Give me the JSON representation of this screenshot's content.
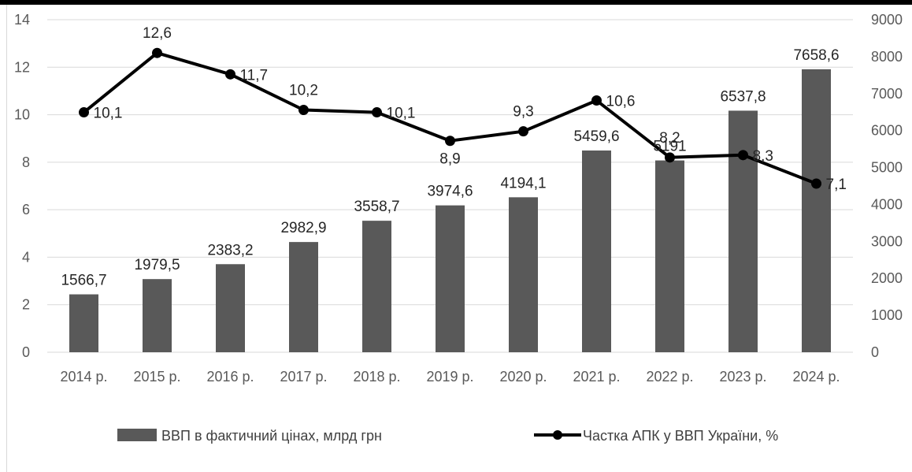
{
  "chart_data": {
    "type": "bar+line",
    "title": "",
    "categories": [
      "2014 р.",
      "2015 р.",
      "2016 р.",
      "2017 р.",
      "2018 р.",
      "2019 р.",
      "2020 р.",
      "2021 р.",
      "2022 р.",
      "2023 р.",
      "2024 р."
    ],
    "series": [
      {
        "name": "ВВП в фактичний цінах, млрд грн",
        "type": "bar",
        "axis": "right",
        "values": [
          1566.7,
          1979.5,
          2383.2,
          2982.9,
          3558.7,
          3974.6,
          4194.1,
          5459.6,
          5191,
          6537.8,
          7658.6
        ],
        "labels": [
          "1566,7",
          "1979,5",
          "2383,2",
          "2982,9",
          "3558,7",
          "3974,6",
          "4194,1",
          "5459,6",
          "5191",
          "6537,8",
          "7658,6"
        ],
        "color": "#595959"
      },
      {
        "name": "Частка АПК у ВВП України, %",
        "type": "line",
        "axis": "left",
        "values": [
          10.1,
          12.6,
          11.7,
          10.2,
          10.1,
          8.9,
          9.3,
          10.6,
          8.2,
          8.3,
          7.1
        ],
        "labels": [
          "10,1",
          "12,6",
          "11,7",
          "10,2",
          "10,1",
          "8,9",
          "9,3",
          "10,6",
          "8,2",
          "8,3",
          "7,1"
        ],
        "color": "#000000"
      }
    ],
    "left_axis": {
      "ylim": [
        0,
        14
      ],
      "ticks": [
        "0",
        "2",
        "4",
        "6",
        "8",
        "10",
        "12",
        "14"
      ]
    },
    "right_axis": {
      "ylim": [
        0,
        9000
      ],
      "ticks": [
        "0",
        "1000",
        "2000",
        "3000",
        "4000",
        "5000",
        "6000",
        "7000",
        "8000",
        "9000"
      ]
    },
    "grid": true,
    "legend": "bottom"
  }
}
